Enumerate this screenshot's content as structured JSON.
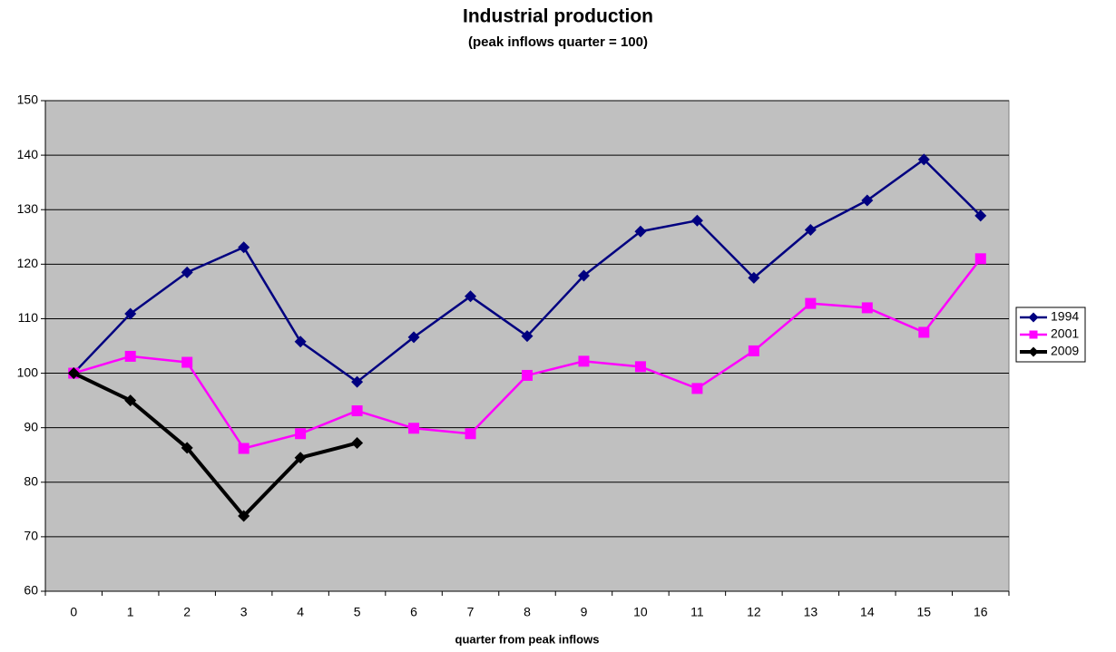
{
  "chart_data": {
    "type": "line",
    "title": "Industrial production",
    "subtitle": "(peak inflows quarter = 100)",
    "x_label": "quarter from peak inflows",
    "categories": [
      "0",
      "1",
      "2",
      "3",
      "4",
      "5",
      "6",
      "7",
      "8",
      "9",
      "10",
      "11",
      "12",
      "13",
      "14",
      "15",
      "16"
    ],
    "series": [
      {
        "name": "1994",
        "color": "#000080",
        "marker": "diamond",
        "line_width": 2.5,
        "values": [
          100,
          110.9,
          118.5,
          123.1,
          105.8,
          98.4,
          106.6,
          114.1,
          106.8,
          117.9,
          126,
          128,
          117.5,
          126.3,
          131.7,
          139.2,
          128.9
        ]
      },
      {
        "name": "2001",
        "color": "#ff00ff",
        "marker": "square",
        "line_width": 2.5,
        "values": [
          100,
          103.1,
          102,
          86.2,
          88.9,
          93.1,
          89.9,
          88.9,
          99.6,
          102.2,
          101.2,
          97.2,
          104.1,
          112.8,
          112,
          107.5,
          121
        ]
      },
      {
        "name": "2009",
        "color": "#000000",
        "marker": "diamond",
        "line_width": 4,
        "values": [
          100,
          95,
          86.3,
          73.8,
          84.5,
          87.2,
          null,
          null,
          null,
          null,
          null,
          null,
          null,
          null,
          null,
          null,
          null
        ]
      }
    ],
    "ylim": [
      60,
      150
    ],
    "yticks": [
      60,
      70,
      80,
      90,
      100,
      110,
      120,
      130,
      140,
      150
    ],
    "grid": true,
    "plot_background": "#c0c0c0",
    "legend": "right"
  }
}
